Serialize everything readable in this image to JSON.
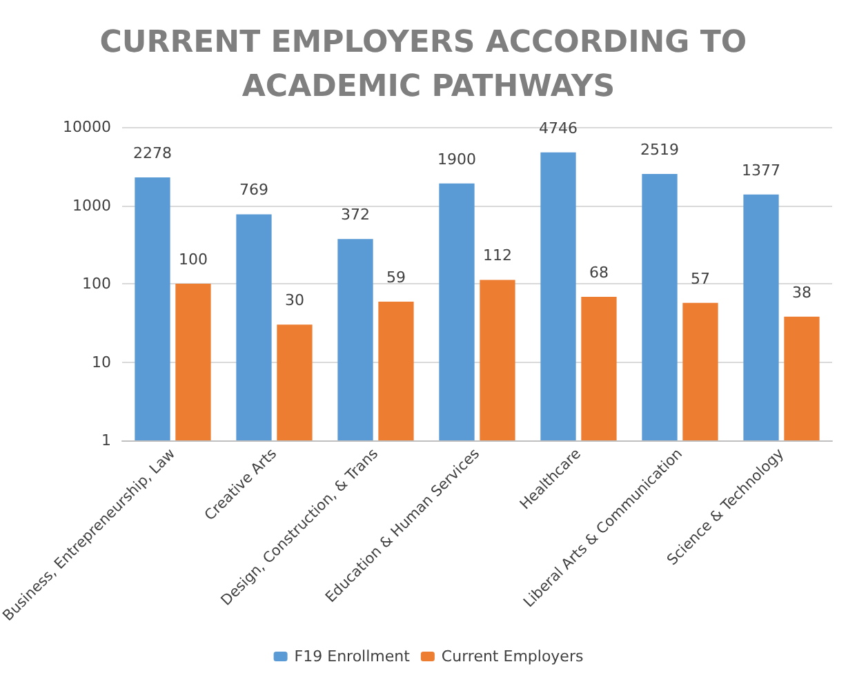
{
  "chart_data": {
    "type": "bar",
    "title": "CURRENT EMPLOYERS ACCORDING TO ACADEMIC PATHWAYS",
    "categories": [
      "Business, Entrepreneurship, Law",
      "Creative Arts",
      "Design, Construction, & Trans",
      "Education & Human Services",
      "Healthcare",
      "Liberal Arts & Communication",
      "Science & Technology"
    ],
    "series": [
      {
        "name": "F19 Enrollment",
        "color": "#5b9bd5",
        "values": [
          2278,
          769,
          372,
          1900,
          4746,
          2519,
          1377
        ]
      },
      {
        "name": "Current Employers",
        "color": "#ed7d31",
        "values": [
          100,
          30,
          59,
          112,
          68,
          57,
          38
        ]
      }
    ],
    "log": true,
    "ylim": [
      1,
      10000
    ],
    "yticks": [
      1,
      10,
      100,
      1000,
      10000
    ],
    "grid": "y",
    "legend": "bottom",
    "data_labels": true
  }
}
